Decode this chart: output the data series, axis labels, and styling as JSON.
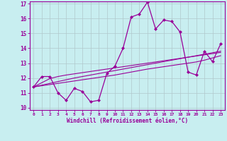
{
  "xlabel": "Windchill (Refroidissement éolien,°C)",
  "background_color": "#c8eef0",
  "grid_color": "#b0c8cc",
  "line_color": "#990099",
  "x_data": [
    0,
    1,
    2,
    3,
    4,
    5,
    6,
    7,
    8,
    9,
    10,
    11,
    12,
    13,
    14,
    15,
    16,
    17,
    18,
    19,
    20,
    21,
    22,
    23
  ],
  "y_main": [
    11.4,
    12.1,
    12.1,
    11.0,
    10.5,
    11.3,
    11.1,
    10.4,
    10.5,
    12.3,
    12.8,
    14.0,
    16.1,
    16.3,
    17.1,
    15.3,
    15.9,
    15.8,
    15.1,
    12.4,
    12.2,
    13.8,
    13.1,
    14.3
  ],
  "y_trend1": [
    11.4,
    11.68,
    11.96,
    12.1,
    12.2,
    12.28,
    12.36,
    12.44,
    12.52,
    12.6,
    12.68,
    12.76,
    12.84,
    12.92,
    13.0,
    13.08,
    13.16,
    13.24,
    13.32,
    13.4,
    13.48,
    13.56,
    13.64,
    13.72
  ],
  "y_trend2": [
    11.4,
    11.52,
    11.64,
    11.76,
    11.88,
    12.0,
    12.1,
    12.2,
    12.3,
    12.4,
    12.5,
    12.6,
    12.7,
    12.8,
    12.9,
    13.0,
    13.1,
    13.2,
    13.3,
    13.4,
    13.5,
    13.6,
    13.7,
    13.8
  ],
  "y_trend3": [
    11.4,
    11.48,
    11.56,
    11.64,
    11.72,
    11.8,
    11.88,
    11.96,
    12.04,
    12.12,
    12.2,
    12.3,
    12.4,
    12.5,
    12.6,
    12.68,
    12.76,
    12.84,
    12.92,
    13.0,
    13.08,
    13.2,
    13.35,
    13.5
  ],
  "ylim": [
    10,
    17
  ],
  "xlim": [
    0,
    23
  ],
  "yticks": [
    10,
    11,
    12,
    13,
    14,
    15,
    16,
    17
  ],
  "xticks": [
    0,
    1,
    2,
    3,
    4,
    5,
    6,
    7,
    8,
    9,
    10,
    11,
    12,
    13,
    14,
    15,
    16,
    17,
    18,
    19,
    20,
    21,
    22,
    23
  ]
}
